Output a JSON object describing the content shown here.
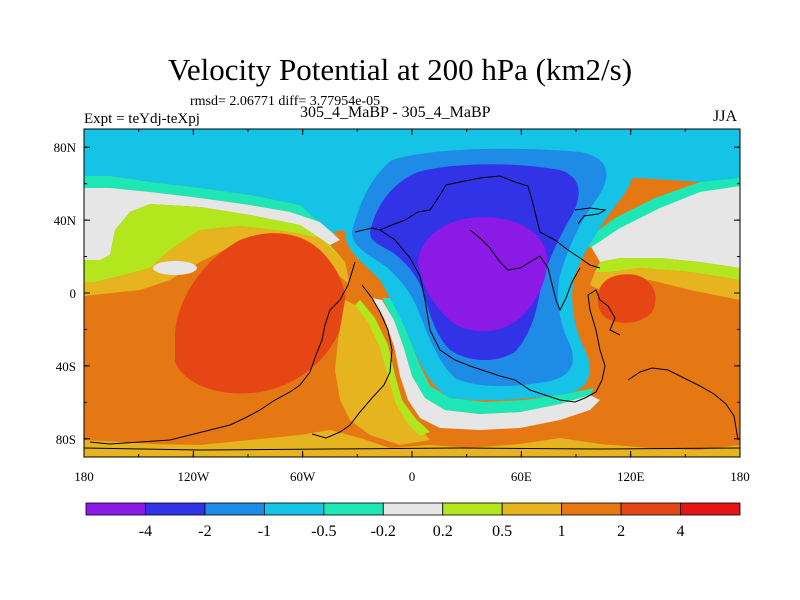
{
  "chart_data": {
    "type": "heatmap",
    "title": "Velocity Potential at 200 hPa (km2/s)",
    "subtitle": "rmsd= 2.06771  diff= 3.77954e-05",
    "left_label": "Expt = teYdj-teXpj",
    "center_label": "305_4_MaBP - 305_4_MaBP",
    "right_label": "JJA",
    "x_range": [
      -180,
      180
    ],
    "y_range": [
      -90,
      90
    ],
    "x_tick_labels": [
      "180",
      "120W",
      "60W",
      "0",
      "60E",
      "120E",
      "180"
    ],
    "y_tick_labels": [
      "80N",
      "40N",
      "0",
      "40S",
      "80S"
    ],
    "levels": [
      -4,
      -2,
      -1,
      -0.5,
      -0.2,
      0.2,
      0.5,
      1,
      2,
      4
    ],
    "level_labels": [
      "-4",
      "-2",
      "-1",
      "-0.5",
      "-0.2",
      "0.2",
      "0.5",
      "1",
      "2",
      "4"
    ],
    "colors": [
      "#8c1ae6",
      "#3232e6",
      "#1e8ce6",
      "#14c3e6",
      "#1ee6b4",
      "#e6e6e6",
      "#b4e61e",
      "#e6b41e",
      "#e67814",
      "#e64614",
      "#e61414"
    ]
  }
}
